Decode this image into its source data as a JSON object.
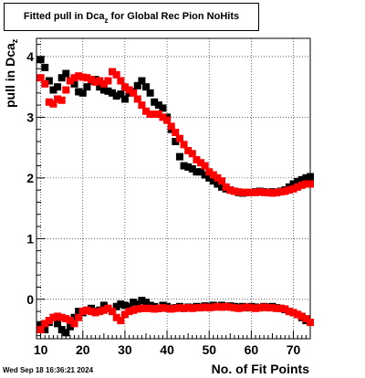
{
  "chart_data": {
    "type": "scatter",
    "title_main": "Fitted pull in Dca",
    "title_sub": "z",
    "title_rest": " for Global Rec Pion NoHits",
    "xlabel": "No. of Fit Points",
    "ylabel_main": "pull in Dca",
    "ylabel_sub": "z",
    "xlim": [
      9,
      74
    ],
    "ylim": [
      -0.65,
      4.3
    ],
    "xticks": [
      10,
      20,
      30,
      40,
      50,
      60,
      70
    ],
    "yticks": [
      0,
      1,
      2,
      3,
      4
    ],
    "grid": true,
    "series": [
      {
        "color": "#000000",
        "points": [
          [
            10,
            3.95
          ],
          [
            11,
            3.82
          ],
          [
            12,
            3.6
          ],
          [
            13,
            3.45
          ],
          [
            14,
            3.5
          ],
          [
            15,
            3.65
          ],
          [
            16,
            3.72
          ],
          [
            17,
            3.6
          ],
          [
            18,
            3.55
          ],
          [
            19,
            3.42
          ],
          [
            20,
            3.4
          ],
          [
            21,
            3.5
          ],
          [
            22,
            3.6
          ],
          [
            23,
            3.62
          ],
          [
            24,
            3.5
          ],
          [
            25,
            3.45
          ],
          [
            26,
            3.43
          ],
          [
            27,
            3.4
          ],
          [
            28,
            3.35
          ],
          [
            29,
            3.38
          ],
          [
            30,
            3.3
          ],
          [
            31,
            3.4
          ],
          [
            32,
            3.42
          ],
          [
            33,
            3.52
          ],
          [
            34,
            3.6
          ],
          [
            35,
            3.5
          ],
          [
            36,
            3.4
          ],
          [
            37,
            3.25
          ],
          [
            38,
            3.2
          ],
          [
            39,
            3.15
          ],
          [
            40,
            3.0
          ],
          [
            41,
            2.8
          ],
          [
            42,
            2.6
          ],
          [
            43,
            2.35
          ],
          [
            44,
            2.2
          ],
          [
            45,
            2.18
          ],
          [
            46,
            2.15
          ],
          [
            47,
            2.1
          ],
          [
            48,
            2.1
          ],
          [
            49,
            2.05
          ],
          [
            50,
            2.0
          ],
          [
            51,
            1.95
          ],
          [
            52,
            1.9
          ],
          [
            53,
            1.85
          ],
          [
            54,
            1.82
          ],
          [
            55,
            1.8
          ],
          [
            56,
            1.78
          ],
          [
            57,
            1.76
          ],
          [
            58,
            1.75
          ],
          [
            59,
            1.76
          ],
          [
            60,
            1.76
          ],
          [
            61,
            1.77
          ],
          [
            62,
            1.78
          ],
          [
            63,
            1.77
          ],
          [
            64,
            1.76
          ],
          [
            65,
            1.77
          ],
          [
            66,
            1.76
          ],
          [
            67,
            1.78
          ],
          [
            68,
            1.8
          ],
          [
            69,
            1.85
          ],
          [
            70,
            1.9
          ],
          [
            71,
            1.94
          ],
          [
            72,
            1.97
          ],
          [
            73,
            2.0
          ],
          [
            74,
            2.02
          ],
          [
            10,
            -0.42
          ],
          [
            11,
            -0.5
          ],
          [
            12,
            -0.38
          ],
          [
            13,
            -0.3
          ],
          [
            14,
            -0.4
          ],
          [
            15,
            -0.5
          ],
          [
            16,
            -0.55
          ],
          [
            17,
            -0.45
          ],
          [
            18,
            -0.3
          ],
          [
            19,
            -0.2
          ],
          [
            20,
            -0.22
          ],
          [
            21,
            -0.18
          ],
          [
            22,
            -0.15
          ],
          [
            23,
            -0.2
          ],
          [
            24,
            -0.18
          ],
          [
            25,
            -0.1
          ],
          [
            26,
            -0.15
          ],
          [
            27,
            -0.2
          ],
          [
            28,
            -0.12
          ],
          [
            29,
            -0.08
          ],
          [
            30,
            -0.1
          ],
          [
            31,
            -0.12
          ],
          [
            32,
            -0.05
          ],
          [
            33,
            -0.08
          ],
          [
            34,
            -0.02
          ],
          [
            35,
            -0.05
          ],
          [
            36,
            -0.1
          ],
          [
            37,
            -0.12
          ],
          [
            38,
            -0.15
          ],
          [
            39,
            -0.1
          ],
          [
            40,
            -0.12
          ],
          [
            41,
            -0.15
          ],
          [
            42,
            -0.14
          ],
          [
            43,
            -0.12
          ],
          [
            44,
            -0.15
          ],
          [
            45,
            -0.13
          ],
          [
            46,
            -0.14
          ],
          [
            47,
            -0.12
          ],
          [
            48,
            -0.13
          ],
          [
            49,
            -0.11
          ],
          [
            50,
            -0.12
          ],
          [
            51,
            -0.1
          ],
          [
            52,
            -0.12
          ],
          [
            53,
            -0.1
          ],
          [
            54,
            -0.12
          ],
          [
            55,
            -0.11
          ],
          [
            56,
            -0.12
          ],
          [
            57,
            -0.13
          ],
          [
            58,
            -0.12
          ],
          [
            59,
            -0.14
          ],
          [
            60,
            -0.12
          ],
          [
            61,
            -0.13
          ],
          [
            62,
            -0.14
          ],
          [
            63,
            -0.12
          ],
          [
            64,
            -0.13
          ],
          [
            65,
            -0.12
          ],
          [
            66,
            -0.14
          ],
          [
            67,
            -0.15
          ],
          [
            68,
            -0.17
          ],
          [
            69,
            -0.2
          ],
          [
            70,
            -0.22
          ],
          [
            71,
            -0.25
          ],
          [
            72,
            -0.3
          ],
          [
            73,
            -0.35
          ],
          [
            74,
            -0.38
          ]
        ]
      },
      {
        "color": "#ff0000",
        "points": [
          [
            10,
            3.65
          ],
          [
            11,
            3.55
          ],
          [
            12,
            3.25
          ],
          [
            13,
            3.22
          ],
          [
            14,
            3.3
          ],
          [
            15,
            3.28
          ],
          [
            16,
            3.45
          ],
          [
            17,
            3.6
          ],
          [
            18,
            3.65
          ],
          [
            19,
            3.68
          ],
          [
            20,
            3.66
          ],
          [
            21,
            3.65
          ],
          [
            22,
            3.62
          ],
          [
            23,
            3.58
          ],
          [
            24,
            3.6
          ],
          [
            25,
            3.55
          ],
          [
            26,
            3.6
          ],
          [
            27,
            3.75
          ],
          [
            28,
            3.7
          ],
          [
            29,
            3.6
          ],
          [
            30,
            3.5
          ],
          [
            31,
            3.45
          ],
          [
            32,
            3.4
          ],
          [
            33,
            3.3
          ],
          [
            34,
            3.2
          ],
          [
            35,
            3.1
          ],
          [
            36,
            3.05
          ],
          [
            37,
            3.05
          ],
          [
            38,
            3.05
          ],
          [
            39,
            3.0
          ],
          [
            40,
            2.95
          ],
          [
            41,
            2.85
          ],
          [
            42,
            2.75
          ],
          [
            43,
            2.65
          ],
          [
            44,
            2.55
          ],
          [
            45,
            2.45
          ],
          [
            46,
            2.4
          ],
          [
            47,
            2.3
          ],
          [
            48,
            2.25
          ],
          [
            49,
            2.2
          ],
          [
            50,
            2.1
          ],
          [
            51,
            2.05
          ],
          [
            52,
            2.0
          ],
          [
            53,
            1.95
          ],
          [
            54,
            1.85
          ],
          [
            55,
            1.8
          ],
          [
            56,
            1.78
          ],
          [
            57,
            1.77
          ],
          [
            58,
            1.76
          ],
          [
            59,
            1.76
          ],
          [
            60,
            1.76
          ],
          [
            61,
            1.76
          ],
          [
            62,
            1.77
          ],
          [
            63,
            1.76
          ],
          [
            64,
            1.76
          ],
          [
            65,
            1.75
          ],
          [
            66,
            1.76
          ],
          [
            67,
            1.77
          ],
          [
            68,
            1.78
          ],
          [
            69,
            1.8
          ],
          [
            70,
            1.82
          ],
          [
            71,
            1.85
          ],
          [
            72,
            1.88
          ],
          [
            73,
            1.9
          ],
          [
            74,
            1.9
          ],
          [
            10,
            -0.5
          ],
          [
            11,
            -0.4
          ],
          [
            12,
            -0.35
          ],
          [
            13,
            -0.3
          ],
          [
            14,
            -0.28
          ],
          [
            15,
            -0.3
          ],
          [
            16,
            -0.32
          ],
          [
            17,
            -0.35
          ],
          [
            18,
            -0.4
          ],
          [
            19,
            -0.3
          ],
          [
            20,
            -0.2
          ],
          [
            21,
            -0.18
          ],
          [
            22,
            -0.2
          ],
          [
            23,
            -0.22
          ],
          [
            24,
            -0.2
          ],
          [
            25,
            -0.18
          ],
          [
            26,
            -0.15
          ],
          [
            27,
            -0.2
          ],
          [
            28,
            -0.3
          ],
          [
            29,
            -0.35
          ],
          [
            30,
            -0.25
          ],
          [
            31,
            -0.2
          ],
          [
            32,
            -0.18
          ],
          [
            33,
            -0.16
          ],
          [
            34,
            -0.15
          ],
          [
            35,
            -0.15
          ],
          [
            36,
            -0.15
          ],
          [
            37,
            -0.16
          ],
          [
            38,
            -0.15
          ],
          [
            39,
            -0.14
          ],
          [
            40,
            -0.15
          ],
          [
            41,
            -0.16
          ],
          [
            42,
            -0.15
          ],
          [
            43,
            -0.14
          ],
          [
            44,
            -0.15
          ],
          [
            45,
            -0.14
          ],
          [
            46,
            -0.15
          ],
          [
            47,
            -0.14
          ],
          [
            48,
            -0.14
          ],
          [
            49,
            -0.13
          ],
          [
            50,
            -0.14
          ],
          [
            51,
            -0.13
          ],
          [
            52,
            -0.12
          ],
          [
            53,
            -0.13
          ],
          [
            54,
            -0.12
          ],
          [
            55,
            -0.13
          ],
          [
            56,
            -0.14
          ],
          [
            57,
            -0.15
          ],
          [
            58,
            -0.14
          ],
          [
            59,
            -0.13
          ],
          [
            60,
            -0.14
          ],
          [
            61,
            -0.15
          ],
          [
            62,
            -0.14
          ],
          [
            63,
            -0.13
          ],
          [
            64,
            -0.14
          ],
          [
            65,
            -0.14
          ],
          [
            66,
            -0.15
          ],
          [
            67,
            -0.15
          ],
          [
            68,
            -0.16
          ],
          [
            69,
            -0.2
          ],
          [
            70,
            -0.22
          ],
          [
            71,
            -0.25
          ],
          [
            72,
            -0.28
          ],
          [
            73,
            -0.32
          ],
          [
            74,
            -0.38
          ]
        ]
      }
    ]
  },
  "timestamp": "Wed Sep 18 16:36:21 2024"
}
